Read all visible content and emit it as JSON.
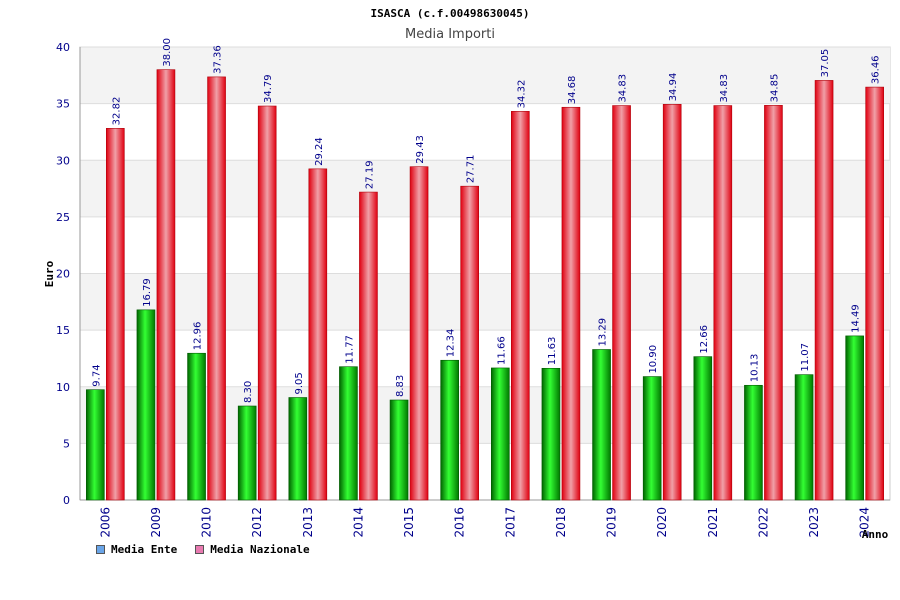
{
  "chart_data": {
    "type": "bar",
    "title": "ISASCA (c.f.00498630045)",
    "subtitle": "Media Importi",
    "ylabel": "Euro",
    "xlabel": "Anno",
    "ylim": [
      0,
      40
    ],
    "yticks": [
      "0",
      "5",
      "10",
      "15",
      "20",
      "25",
      "30",
      "35",
      "40"
    ],
    "categories": [
      "2006",
      "2009",
      "2010",
      "2012",
      "2013",
      "2014",
      "2015",
      "2016",
      "2017",
      "2018",
      "2019",
      "2020",
      "2021",
      "2022",
      "2023",
      "2024"
    ],
    "series": [
      {
        "name": "Media Ente",
        "color": "#00b400",
        "values": [
          9.74,
          16.79,
          12.96,
          8.3,
          9.05,
          11.77,
          8.83,
          12.34,
          11.66,
          11.63,
          13.29,
          10.9,
          12.66,
          10.13,
          11.07,
          14.49
        ],
        "labels": [
          "9.74",
          "16.79",
          "12.96",
          "8.30",
          "9.05",
          "11.77",
          "8.83",
          "12.34",
          "11.66",
          "11.63",
          "13.29",
          "10.90",
          "12.66",
          "10.13",
          "11.07",
          "14.49"
        ]
      },
      {
        "name": "Media Nazionale",
        "color": "#e8141e",
        "values": [
          32.82,
          38.0,
          37.36,
          34.79,
          29.24,
          27.19,
          29.43,
          27.71,
          34.32,
          34.68,
          34.83,
          34.94,
          34.83,
          34.85,
          37.05,
          36.46
        ],
        "labels": [
          "32.82",
          "38.00",
          "37.36",
          "34.79",
          "29.24",
          "27.19",
          "29.43",
          "27.71",
          "34.32",
          "34.68",
          "34.83",
          "34.94",
          "34.83",
          "34.85",
          "37.05",
          "36.46"
        ]
      }
    ],
    "legend": [
      {
        "label": "Media Ente",
        "color": "#6aa5e8"
      },
      {
        "label": "Media Nazionale",
        "color": "#e87ab0"
      }
    ]
  }
}
